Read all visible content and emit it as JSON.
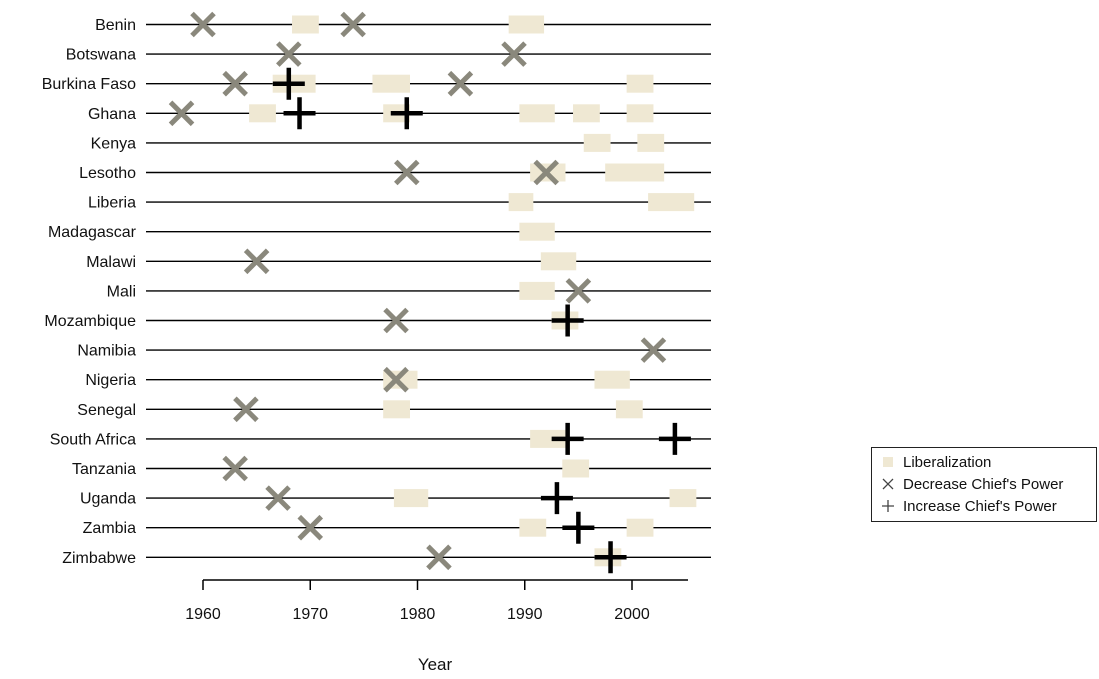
{
  "chart_data": {
    "type": "scatter",
    "title": "",
    "xlabel": "Year",
    "ylabel": "",
    "xlim": [
      1956,
      2006
    ],
    "xticks": [
      1960,
      1970,
      1980,
      1990,
      2000
    ],
    "countries": [
      "Benin",
      "Botswana",
      "Burkina Faso",
      "Ghana",
      "Kenya",
      "Lesotho",
      "Liberia",
      "Madagascar",
      "Malawi",
      "Mali",
      "Mozambique",
      "Namibia",
      "Nigeria",
      "Senegal",
      "South Africa",
      "Tanzania",
      "Uganda",
      "Zambia",
      "Zimbabwe"
    ],
    "colors": {
      "liberalization": "#efe8d3",
      "decrease": "#8a887c",
      "increase": "#000000",
      "line": "#000000"
    },
    "liberalization": [
      {
        "country": "Benin",
        "start": 1968.3,
        "end": 1970.8
      },
      {
        "country": "Benin",
        "start": 1988.5,
        "end": 1991.8
      },
      {
        "country": "Burkina Faso",
        "start": 1966.5,
        "end": 1970.5
      },
      {
        "country": "Burkina Faso",
        "start": 1975.8,
        "end": 1979.3
      },
      {
        "country": "Burkina Faso",
        "start": 1999.5,
        "end": 2002
      },
      {
        "country": "Ghana",
        "start": 1964.3,
        "end": 1966.8
      },
      {
        "country": "Ghana",
        "start": 1976.8,
        "end": 1979.3
      },
      {
        "country": "Ghana",
        "start": 1989.5,
        "end": 1992.8
      },
      {
        "country": "Ghana",
        "start": 1994.5,
        "end": 1997
      },
      {
        "country": "Ghana",
        "start": 1999.5,
        "end": 2002
      },
      {
        "country": "Kenya",
        "start": 1995.5,
        "end": 1998
      },
      {
        "country": "Kenya",
        "start": 2000.5,
        "end": 2003
      },
      {
        "country": "Lesotho",
        "start": 1990.5,
        "end": 1993.8
      },
      {
        "country": "Lesotho",
        "start": 1997.5,
        "end": 2003
      },
      {
        "country": "Liberia",
        "start": 1988.5,
        "end": 1990.8
      },
      {
        "country": "Liberia",
        "start": 2001.5,
        "end": 2005.8
      },
      {
        "country": "Madagascar",
        "start": 1989.5,
        "end": 1992.8
      },
      {
        "country": "Malawi",
        "start": 1991.5,
        "end": 1994.8
      },
      {
        "country": "Mali",
        "start": 1989.5,
        "end": 1992.8
      },
      {
        "country": "Mozambique",
        "start": 1992.5,
        "end": 1995
      },
      {
        "country": "Nigeria",
        "start": 1976.8,
        "end": 1980
      },
      {
        "country": "Nigeria",
        "start": 1996.5,
        "end": 1999.8
      },
      {
        "country": "Senegal",
        "start": 1976.8,
        "end": 1979.3
      },
      {
        "country": "Senegal",
        "start": 1998.5,
        "end": 2001
      },
      {
        "country": "South Africa",
        "start": 1990.5,
        "end": 1994
      },
      {
        "country": "Tanzania",
        "start": 1993.5,
        "end": 1996
      },
      {
        "country": "Uganda",
        "start": 1977.8,
        "end": 1981
      },
      {
        "country": "Uganda",
        "start": 2003.5,
        "end": 2006
      },
      {
        "country": "Zambia",
        "start": 1989.5,
        "end": 1992
      },
      {
        "country": "Zambia",
        "start": 1999.5,
        "end": 2002
      },
      {
        "country": "Zimbabwe",
        "start": 1996.5,
        "end": 1999
      }
    ],
    "decrease": [
      {
        "country": "Benin",
        "year": 1960
      },
      {
        "country": "Benin",
        "year": 1974
      },
      {
        "country": "Botswana",
        "year": 1968
      },
      {
        "country": "Botswana",
        "year": 1989
      },
      {
        "country": "Burkina Faso",
        "year": 1963
      },
      {
        "country": "Burkina Faso",
        "year": 1984
      },
      {
        "country": "Ghana",
        "year": 1958
      },
      {
        "country": "Lesotho",
        "year": 1979
      },
      {
        "country": "Lesotho",
        "year": 1992
      },
      {
        "country": "Malawi",
        "year": 1965
      },
      {
        "country": "Mali",
        "year": 1995
      },
      {
        "country": "Mozambique",
        "year": 1978
      },
      {
        "country": "Namibia",
        "year": 2002
      },
      {
        "country": "Nigeria",
        "year": 1978
      },
      {
        "country": "Senegal",
        "year": 1964
      },
      {
        "country": "Tanzania",
        "year": 1963
      },
      {
        "country": "Uganda",
        "year": 1967
      },
      {
        "country": "Zambia",
        "year": 1970
      },
      {
        "country": "Zimbabwe",
        "year": 1982
      }
    ],
    "increase": [
      {
        "country": "Burkina Faso",
        "year": 1968
      },
      {
        "country": "Ghana",
        "year": 1969
      },
      {
        "country": "Ghana",
        "year": 1979
      },
      {
        "country": "Mozambique",
        "year": 1994
      },
      {
        "country": "South Africa",
        "year": 1994
      },
      {
        "country": "South Africa",
        "year": 2004
      },
      {
        "country": "Uganda",
        "year": 1993
      },
      {
        "country": "Zambia",
        "year": 1995
      },
      {
        "country": "Zimbabwe",
        "year": 1998
      }
    ],
    "legend": {
      "position": "right",
      "items": [
        {
          "key": "liberalization",
          "label": "Liberalization"
        },
        {
          "key": "decrease",
          "label": "Decrease Chief's Power"
        },
        {
          "key": "increase",
          "label": "Increase Chief's Power"
        }
      ]
    }
  }
}
